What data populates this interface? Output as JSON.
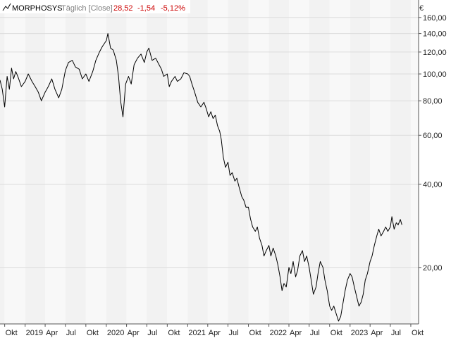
{
  "header": {
    "symbol": "MORPHOSYS",
    "interval": "Täglich [Close]",
    "last": "28,52",
    "change": "-1,54",
    "change_pct": "-5,12%",
    "currency": "€"
  },
  "colors": {
    "background": "#ffffff",
    "band_light": "#f2f2f2",
    "band_lighter": "#f8f8f8",
    "grid": "#dcdcdc",
    "axis": "#555555",
    "line": "#000000",
    "negative": "#cc0000",
    "muted_text": "#808080"
  },
  "chart_data": {
    "type": "line",
    "y_scale": "log",
    "ylim": [
      12.5,
      185
    ],
    "y_ticks": [
      {
        "value": 20,
        "label": "20,00"
      },
      {
        "value": 40,
        "label": "40,00"
      },
      {
        "value": 60,
        "label": "60,00"
      },
      {
        "value": 80,
        "label": "80,00"
      },
      {
        "value": 100,
        "label": "100,00"
      },
      {
        "value": 120,
        "label": "120,00"
      },
      {
        "value": 140,
        "label": "140,00"
      },
      {
        "value": 160,
        "label": "160,00"
      }
    ],
    "xlim": [
      "2018-09-10",
      "2023-11-05"
    ],
    "x_ticks": [
      {
        "date": "2018-10-01",
        "label": "Okt"
      },
      {
        "date": "2019-01-01",
        "label": "2019"
      },
      {
        "date": "2019-04-01",
        "label": "Apr"
      },
      {
        "date": "2019-07-01",
        "label": "Jul"
      },
      {
        "date": "2019-10-01",
        "label": "Okt"
      },
      {
        "date": "2020-01-01",
        "label": "2020"
      },
      {
        "date": "2020-04-01",
        "label": "Apr"
      },
      {
        "date": "2020-07-01",
        "label": "Jul"
      },
      {
        "date": "2020-10-01",
        "label": "Okt"
      },
      {
        "date": "2021-01-01",
        "label": "2021"
      },
      {
        "date": "2021-04-01",
        "label": "Apr"
      },
      {
        "date": "2021-07-01",
        "label": "Jul"
      },
      {
        "date": "2021-10-01",
        "label": "Okt"
      },
      {
        "date": "2022-01-01",
        "label": "2022"
      },
      {
        "date": "2022-04-01",
        "label": "Apr"
      },
      {
        "date": "2022-07-01",
        "label": "Jul"
      },
      {
        "date": "2022-10-01",
        "label": "Okt"
      },
      {
        "date": "2023-01-01",
        "label": "2023"
      },
      {
        "date": "2023-04-01",
        "label": "Apr"
      },
      {
        "date": "2023-07-01",
        "label": "Jul"
      },
      {
        "date": "2023-10-01",
        "label": "Okt"
      }
    ],
    "series": [
      {
        "points": [
          [
            "2018-09-10",
            95
          ],
          [
            "2018-09-20",
            88
          ],
          [
            "2018-10-01",
            76
          ],
          [
            "2018-10-12",
            98
          ],
          [
            "2018-10-22",
            88
          ],
          [
            "2018-11-01",
            105
          ],
          [
            "2018-11-10",
            96
          ],
          [
            "2018-11-20",
            102
          ],
          [
            "2018-12-01",
            97
          ],
          [
            "2018-12-15",
            90
          ],
          [
            "2019-01-01",
            94
          ],
          [
            "2019-01-15",
            100
          ],
          [
            "2019-02-01",
            94
          ],
          [
            "2019-02-15",
            90
          ],
          [
            "2019-03-01",
            86
          ],
          [
            "2019-03-15",
            80
          ],
          [
            "2019-04-01",
            86
          ],
          [
            "2019-04-15",
            90
          ],
          [
            "2019-05-01",
            96
          ],
          [
            "2019-05-15",
            88
          ],
          [
            "2019-06-01",
            82
          ],
          [
            "2019-06-15",
            88
          ],
          [
            "2019-07-01",
            103
          ],
          [
            "2019-07-15",
            110
          ],
          [
            "2019-08-01",
            112
          ],
          [
            "2019-08-15",
            106
          ],
          [
            "2019-09-01",
            104
          ],
          [
            "2019-09-15",
            96
          ],
          [
            "2019-10-01",
            100
          ],
          [
            "2019-10-15",
            94
          ],
          [
            "2019-11-01",
            102
          ],
          [
            "2019-11-15",
            112
          ],
          [
            "2019-12-01",
            120
          ],
          [
            "2019-12-15",
            126
          ],
          [
            "2020-01-01",
            132
          ],
          [
            "2020-01-08",
            140
          ],
          [
            "2020-01-20",
            124
          ],
          [
            "2020-02-01",
            122
          ],
          [
            "2020-02-15",
            112
          ],
          [
            "2020-02-25",
            98
          ],
          [
            "2020-03-05",
            80
          ],
          [
            "2020-03-16",
            70
          ],
          [
            "2020-03-28",
            92
          ],
          [
            "2020-04-10",
            98
          ],
          [
            "2020-04-22",
            92
          ],
          [
            "2020-05-05",
            108
          ],
          [
            "2020-05-20",
            114
          ],
          [
            "2020-06-05",
            118
          ],
          [
            "2020-06-20",
            110
          ],
          [
            "2020-07-01",
            120
          ],
          [
            "2020-07-10",
            124
          ],
          [
            "2020-07-25",
            112
          ],
          [
            "2020-08-10",
            114
          ],
          [
            "2020-08-25",
            108
          ],
          [
            "2020-09-05",
            104
          ],
          [
            "2020-09-15",
            98
          ],
          [
            "2020-10-01",
            100
          ],
          [
            "2020-10-10",
            90
          ],
          [
            "2020-10-20",
            94
          ],
          [
            "2020-11-05",
            98
          ],
          [
            "2020-11-15",
            94
          ],
          [
            "2020-12-01",
            96
          ],
          [
            "2020-12-15",
            101
          ],
          [
            "2021-01-01",
            100
          ],
          [
            "2021-01-10",
            98
          ],
          [
            "2021-01-20",
            92
          ],
          [
            "2021-02-01",
            86
          ],
          [
            "2021-02-15",
            79
          ],
          [
            "2021-03-01",
            76
          ],
          [
            "2021-03-15",
            79
          ],
          [
            "2021-03-25",
            75
          ],
          [
            "2021-04-05",
            70
          ],
          [
            "2021-04-15",
            73
          ],
          [
            "2021-04-25",
            69
          ],
          [
            "2021-05-05",
            71
          ],
          [
            "2021-05-15",
            65
          ],
          [
            "2021-05-25",
            62
          ],
          [
            "2021-06-01",
            58
          ],
          [
            "2021-06-10",
            50
          ],
          [
            "2021-06-20",
            46
          ],
          [
            "2021-07-01",
            48
          ],
          [
            "2021-07-10",
            43
          ],
          [
            "2021-07-20",
            44
          ],
          [
            "2021-08-01",
            41
          ],
          [
            "2021-08-10",
            42
          ],
          [
            "2021-08-20",
            39
          ],
          [
            "2021-09-01",
            36
          ],
          [
            "2021-09-10",
            35
          ],
          [
            "2021-09-20",
            33
          ],
          [
            "2021-10-01",
            33
          ],
          [
            "2021-10-10",
            30
          ],
          [
            "2021-10-20",
            28
          ],
          [
            "2021-11-01",
            27
          ],
          [
            "2021-11-10",
            28
          ],
          [
            "2021-11-20",
            25.5
          ],
          [
            "2021-12-01",
            24
          ],
          [
            "2021-12-10",
            22
          ],
          [
            "2021-12-20",
            23
          ],
          [
            "2022-01-01",
            24
          ],
          [
            "2022-01-10",
            22
          ],
          [
            "2022-01-20",
            23.5
          ],
          [
            "2022-02-01",
            22
          ],
          [
            "2022-02-10",
            20.5
          ],
          [
            "2022-02-20",
            18.5
          ],
          [
            "2022-03-01",
            16.5
          ],
          [
            "2022-03-10",
            17.5
          ],
          [
            "2022-03-20",
            17
          ],
          [
            "2022-04-01",
            20
          ],
          [
            "2022-04-10",
            19
          ],
          [
            "2022-04-20",
            21
          ],
          [
            "2022-05-01",
            18.5
          ],
          [
            "2022-05-10",
            19.5
          ],
          [
            "2022-05-20",
            22
          ],
          [
            "2022-06-01",
            23
          ],
          [
            "2022-06-10",
            21
          ],
          [
            "2022-06-20",
            22
          ],
          [
            "2022-07-01",
            20
          ],
          [
            "2022-07-10",
            18
          ],
          [
            "2022-07-20",
            16
          ],
          [
            "2022-08-01",
            17
          ],
          [
            "2022-08-10",
            19
          ],
          [
            "2022-08-20",
            21
          ],
          [
            "2022-09-01",
            20
          ],
          [
            "2022-09-10",
            18
          ],
          [
            "2022-09-20",
            16.5
          ],
          [
            "2022-10-01",
            14.5
          ],
          [
            "2022-10-10",
            14
          ],
          [
            "2022-10-20",
            14.5
          ],
          [
            "2022-11-01",
            13.5
          ],
          [
            "2022-11-10",
            12.8
          ],
          [
            "2022-11-20",
            13.3
          ],
          [
            "2022-12-01",
            15
          ],
          [
            "2022-12-10",
            16.5
          ],
          [
            "2022-12-20",
            18
          ],
          [
            "2023-01-01",
            19
          ],
          [
            "2023-01-10",
            18.5
          ],
          [
            "2023-01-20",
            17
          ],
          [
            "2023-02-01",
            15.5
          ],
          [
            "2023-02-10",
            14.5
          ],
          [
            "2023-02-20",
            15
          ],
          [
            "2023-03-01",
            16
          ],
          [
            "2023-03-10",
            18
          ],
          [
            "2023-03-20",
            19
          ],
          [
            "2023-04-01",
            21
          ],
          [
            "2023-04-10",
            22
          ],
          [
            "2023-04-20",
            24
          ],
          [
            "2023-05-01",
            26
          ],
          [
            "2023-05-10",
            27.5
          ],
          [
            "2023-05-20",
            26
          ],
          [
            "2023-06-01",
            27
          ],
          [
            "2023-06-10",
            28
          ],
          [
            "2023-06-20",
            27
          ],
          [
            "2023-07-01",
            28
          ],
          [
            "2023-07-08",
            30.5
          ],
          [
            "2023-07-18",
            27.5
          ],
          [
            "2023-07-28",
            29
          ],
          [
            "2023-08-05",
            28.5
          ],
          [
            "2023-08-15",
            29.8
          ],
          [
            "2023-08-22",
            28.52
          ]
        ]
      }
    ]
  }
}
